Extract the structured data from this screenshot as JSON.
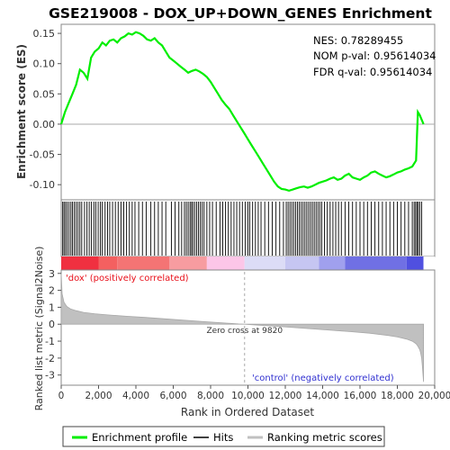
{
  "chart_data": {
    "type": "line",
    "title": "GSE219008 - DOX_UP+DOWN_GENES Enrichment",
    "stats": {
      "nes": "NES: 0.78289455",
      "nom_pval": "NOM p-val: 0.95614034",
      "fdr_qval": "FDR q-val: 0.95614034"
    },
    "xlabel": "Rank in Ordered Dataset",
    "xlim": [
      0,
      20000
    ],
    "x_ticks": [
      0,
      2000,
      4000,
      6000,
      8000,
      10000,
      12000,
      14000,
      16000,
      18000,
      20000
    ],
    "x_tick_labels": [
      "0",
      "2,000",
      "4,000",
      "6,000",
      "8,000",
      "10,000",
      "12,000",
      "14,000",
      "16,000",
      "18,000",
      "20,000"
    ],
    "enrichment": {
      "ylabel": "Enrichment score (ES)",
      "ylim": [
        -0.125,
        0.165
      ],
      "y_ticks": [
        -0.1,
        -0.05,
        0.0,
        0.05,
        0.1,
        0.15
      ],
      "y_tick_labels": [
        "-0.10",
        "-0.05",
        "0.00",
        "0.05",
        "0.10",
        "0.15"
      ],
      "color": "#00ee00",
      "x": [
        0,
        200,
        400,
        600,
        800,
        1000,
        1200,
        1400,
        1600,
        1800,
        2000,
        2200,
        2400,
        2600,
        2800,
        3000,
        3200,
        3400,
        3600,
        3800,
        4000,
        4200,
        4400,
        4600,
        4800,
        5000,
        5200,
        5400,
        5600,
        5800,
        6000,
        6200,
        6400,
        6600,
        6800,
        7000,
        7200,
        7400,
        7600,
        7800,
        8000,
        8200,
        8400,
        8600,
        8800,
        9000,
        9200,
        9400,
        9600,
        9800,
        10000,
        10200,
        10400,
        10600,
        10800,
        11000,
        11200,
        11400,
        11600,
        11800,
        12000,
        12200,
        12400,
        12600,
        12800,
        13000,
        13200,
        13400,
        13600,
        13800,
        14000,
        14200,
        14400,
        14600,
        14800,
        15000,
        15200,
        15400,
        15600,
        15800,
        16000,
        16200,
        16400,
        16600,
        16800,
        17000,
        17200,
        17400,
        17600,
        17800,
        18000,
        18200,
        18400,
        18600,
        18800,
        19000,
        19100,
        19200,
        19400
      ],
      "y": [
        0.0,
        0.02,
        0.035,
        0.05,
        0.065,
        0.09,
        0.085,
        0.075,
        0.11,
        0.12,
        0.125,
        0.135,
        0.13,
        0.138,
        0.14,
        0.135,
        0.142,
        0.145,
        0.15,
        0.148,
        0.152,
        0.15,
        0.146,
        0.14,
        0.138,
        0.142,
        0.135,
        0.13,
        0.12,
        0.11,
        0.105,
        0.1,
        0.095,
        0.09,
        0.085,
        0.088,
        0.09,
        0.087,
        0.083,
        0.078,
        0.07,
        0.06,
        0.05,
        0.04,
        0.032,
        0.025,
        0.015,
        0.005,
        -0.005,
        -0.015,
        -0.025,
        -0.035,
        -0.045,
        -0.055,
        -0.065,
        -0.075,
        -0.085,
        -0.095,
        -0.103,
        -0.107,
        -0.108,
        -0.11,
        -0.108,
        -0.106,
        -0.104,
        -0.103,
        -0.105,
        -0.103,
        -0.1,
        -0.097,
        -0.095,
        -0.093,
        -0.09,
        -0.088,
        -0.092,
        -0.09,
        -0.085,
        -0.082,
        -0.088,
        -0.09,
        -0.092,
        -0.088,
        -0.085,
        -0.08,
        -0.078,
        -0.082,
        -0.085,
        -0.088,
        -0.086,
        -0.083,
        -0.08,
        -0.078,
        -0.075,
        -0.073,
        -0.07,
        -0.06,
        0.02,
        0.015,
        0.0
      ]
    },
    "hits": {
      "label": "Hits",
      "positions": [
        80,
        150,
        230,
        320,
        420,
        520,
        600,
        700,
        800,
        900,
        1000,
        1100,
        1250,
        1380,
        1500,
        1620,
        1750,
        1850,
        1980,
        2100,
        2200,
        2350,
        2480,
        2600,
        2750,
        2900,
        3050,
        3200,
        3350,
        3500,
        3650,
        3800,
        3950,
        4150,
        4350,
        4550,
        4800,
        5000,
        5200,
        5400,
        5600,
        5900,
        6100,
        6300,
        6450,
        6600,
        6700,
        6800,
        6900,
        6980,
        7050,
        7150,
        7250,
        7350,
        7450,
        7550,
        7650,
        7800,
        7950,
        8100,
        8300,
        8500,
        8650,
        8800,
        8950,
        9100,
        9250,
        9400,
        9550,
        9700,
        9850,
        10000,
        10100,
        10250,
        10400,
        10550,
        10700,
        10900,
        11100,
        11300,
        11500,
        11700,
        11900,
        12050,
        12150,
        12250,
        12350,
        12450,
        12550,
        12650,
        12750,
        12850,
        12950,
        13050,
        13150,
        13250,
        13350,
        13450,
        13550,
        13650,
        13750,
        13850,
        13950,
        14100,
        14250,
        14400,
        14550,
        14700,
        14850,
        15000,
        15200,
        15400,
        15600,
        15800,
        16000,
        16200,
        16400,
        16600,
        16800,
        17000,
        17200,
        17400,
        17600,
        17800,
        18000,
        18200,
        18400,
        18600,
        18800,
        18900,
        18980,
        19050,
        19120,
        19200,
        19300
      ]
    },
    "metric": {
      "ylabel": "Ranked list metric (Signal2Noise)",
      "ylim": [
        -3.6,
        3.2
      ],
      "y_ticks": [
        -3,
        -2,
        -1,
        0,
        1,
        2,
        3
      ],
      "y_tick_labels": [
        "-3",
        "-2",
        "-1",
        "0",
        "1",
        "2",
        "3"
      ],
      "x": [
        0,
        50,
        150,
        300,
        500,
        800,
        1200,
        1800,
        2500,
        3500,
        4500,
        5500,
        6500,
        7500,
        8500,
        9500,
        9820,
        10500,
        11500,
        12500,
        13500,
        14500,
        15500,
        16500,
        17500,
        18000,
        18500,
        18800,
        19000,
        19100,
        19200,
        19250,
        19300,
        19350,
        19400
      ],
      "y": [
        3.0,
        1.8,
        1.3,
        1.05,
        0.9,
        0.8,
        0.7,
        0.62,
        0.55,
        0.47,
        0.4,
        0.32,
        0.24,
        0.16,
        0.09,
        0.02,
        0.0,
        -0.05,
        -0.12,
        -0.2,
        -0.28,
        -0.36,
        -0.44,
        -0.53,
        -0.66,
        -0.75,
        -0.88,
        -1.0,
        -1.15,
        -1.3,
        -1.5,
        -1.7,
        -2.0,
        -2.6,
        -3.4
      ],
      "zero_cross_label": "Zero cross at 9820",
      "zero_cross_x": 9820,
      "positive_label": "'dox' (positively correlated)",
      "negative_label": "'control' (negatively correlated)",
      "positive_color": "#e8101a",
      "negative_color": "#3030d0"
    },
    "heatbar": {
      "x_bounds": [
        0,
        2000,
        3000,
        5800,
        7800,
        9820,
        12000,
        13800,
        15200,
        18500,
        19400
      ],
      "colors": [
        "#f03040",
        "#f46060",
        "#f47474",
        "#f79ca0",
        "#fcc6e8",
        "#dcdcf6",
        "#c6c6f2",
        "#a0a0ee",
        "#7070e4",
        "#5050e0",
        "#1010c8"
      ]
    },
    "legend": {
      "items": [
        {
          "label": "Enrichment profile",
          "color": "#00ee00"
        },
        {
          "label": "Hits",
          "color": "#000000"
        },
        {
          "label": "Ranking metric scores",
          "color": "#c0c0c0"
        }
      ]
    }
  }
}
